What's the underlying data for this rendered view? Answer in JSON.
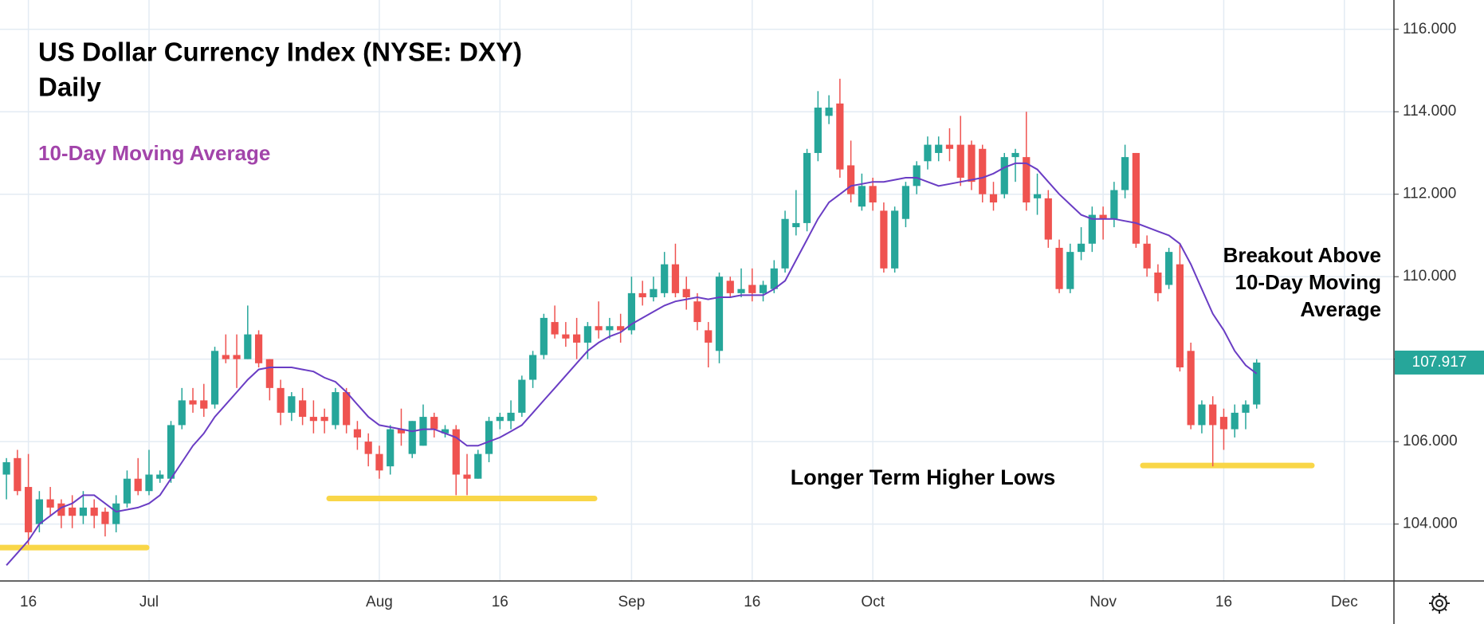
{
  "chart_data": {
    "type": "candlestick",
    "title": [
      "US Dollar Currency Index (NYSE: DXY)",
      "Daily"
    ],
    "categories": [
      null,
      null,
      "16",
      null,
      null,
      null,
      null,
      null,
      null,
      null,
      null,
      null,
      null,
      "Jul",
      null,
      null,
      null,
      null,
      null,
      null,
      null,
      null,
      null,
      null,
      null,
      null,
      null,
      null,
      null,
      null,
      null,
      null,
      null,
      null,
      "Aug",
      null,
      null,
      null,
      null,
      null,
      null,
      null,
      null,
      null,
      null,
      "16",
      null,
      null,
      null,
      null,
      null,
      null,
      null,
      null,
      null,
      null,
      null,
      "Sep",
      null,
      null,
      null,
      null,
      null,
      null,
      null,
      null,
      null,
      null,
      "16",
      null,
      null,
      null,
      null,
      null,
      null,
      null,
      null,
      null,
      null,
      "Oct",
      null,
      null,
      null,
      null,
      null,
      null,
      null,
      null,
      null,
      null,
      null,
      null,
      null,
      null,
      null,
      null,
      null,
      null,
      null,
      null,
      "Nov",
      null,
      null,
      null,
      null,
      null,
      null,
      null,
      null,
      null,
      null,
      "16",
      null,
      null,
      null,
      null,
      null,
      null,
      null,
      null,
      null,
      null,
      "Dec"
    ],
    "candles": {
      "up_color": "#26a69a",
      "down_color": "#ef5350",
      "open": [
        105.2,
        105.6,
        104.9,
        104.0,
        104.6,
        104.5,
        104.4,
        104.2,
        104.4,
        104.3,
        104.0,
        104.5,
        105.1,
        104.8,
        105.1,
        105.1,
        106.4,
        107.0,
        107.0,
        106.9,
        108.1,
        108.1,
        108.0,
        108.6,
        108.0,
        107.3,
        106.7,
        107.0,
        106.6,
        106.6,
        106.4,
        107.2,
        106.3,
        106.0,
        105.7,
        105.4,
        106.3,
        105.7,
        105.9,
        106.6,
        106.2,
        106.3,
        105.2,
        105.1,
        105.7,
        106.5,
        106.5,
        106.7,
        107.5,
        108.1,
        108.9,
        108.6,
        108.6,
        108.4,
        108.8,
        108.7,
        108.8,
        108.7,
        109.6,
        109.5,
        109.6,
        110.3,
        109.7,
        109.4,
        108.7,
        108.2,
        109.9,
        109.6,
        109.8,
        109.6,
        109.7,
        110.2,
        111.2,
        111.3,
        113.0,
        113.9,
        114.2,
        112.7,
        111.7,
        112.2,
        111.6,
        110.2,
        111.4,
        112.2,
        112.8,
        113.0,
        113.2,
        113.2,
        113.2,
        113.1,
        112.0,
        112.0,
        112.9,
        112.9,
        111.9,
        111.9,
        110.7,
        109.7,
        110.6,
        110.8,
        111.5,
        111.4,
        112.1,
        113.0,
        110.8,
        110.1,
        109.8,
        110.3,
        108.2,
        106.4,
        106.9,
        106.6,
        106.3,
        106.7,
        106.9,
        null,
        null,
        null,
        null,
        null,
        null,
        null,
        null
      ],
      "high": [
        105.6,
        105.8,
        105.7,
        104.8,
        104.9,
        104.6,
        104.7,
        104.8,
        104.6,
        104.4,
        104.7,
        105.3,
        105.6,
        105.8,
        105.3,
        106.5,
        107.3,
        107.3,
        107.4,
        108.3,
        108.6,
        108.6,
        109.3,
        108.7,
        108.0,
        107.5,
        107.2,
        107.3,
        107.0,
        106.8,
        107.3,
        107.3,
        106.5,
        106.2,
        105.9,
        106.4,
        106.8,
        106.5,
        106.9,
        106.7,
        106.4,
        106.4,
        105.7,
        105.8,
        106.6,
        106.7,
        107.0,
        107.6,
        108.2,
        109.1,
        109.3,
        108.9,
        109.0,
        108.9,
        109.4,
        109.0,
        109.1,
        110.0,
        109.9,
        110.0,
        110.6,
        110.8,
        110.0,
        109.6,
        108.9,
        110.1,
        110.0,
        110.2,
        110.2,
        109.9,
        110.4,
        111.6,
        112.1,
        113.1,
        114.5,
        114.4,
        114.8,
        113.3,
        112.5,
        112.4,
        111.8,
        111.7,
        112.3,
        112.8,
        113.4,
        113.4,
        113.6,
        113.9,
        113.3,
        113.2,
        112.3,
        113.0,
        113.1,
        114.0,
        112.5,
        112.1,
        110.9,
        110.8,
        111.2,
        111.7,
        111.7,
        112.3,
        113.2,
        113.0,
        111.0,
        110.3,
        110.7,
        110.8,
        108.4,
        107.0,
        107.1,
        106.8,
        106.9,
        107.0,
        108.0,
        null,
        null,
        null,
        null,
        null,
        null,
        null,
        null
      ],
      "low": [
        104.6,
        104.7,
        103.5,
        103.8,
        104.2,
        103.9,
        103.9,
        104.0,
        103.9,
        103.7,
        103.8,
        104.4,
        104.7,
        104.7,
        105.0,
        105.0,
        106.3,
        106.7,
        106.6,
        106.8,
        107.9,
        107.3,
        108.0,
        107.8,
        107.0,
        106.4,
        106.5,
        106.4,
        106.2,
        106.2,
        106.3,
        106.2,
        105.8,
        105.4,
        105.1,
        105.2,
        105.9,
        105.6,
        105.9,
        106.1,
        106.1,
        104.7,
        104.7,
        105.1,
        105.5,
        106.3,
        106.3,
        106.6,
        107.3,
        108.0,
        108.5,
        108.3,
        108.0,
        108.0,
        108.5,
        108.5,
        108.4,
        108.6,
        109.3,
        109.4,
        109.5,
        109.5,
        109.2,
        108.7,
        107.8,
        107.9,
        109.5,
        109.5,
        109.4,
        109.4,
        109.6,
        110.1,
        111.0,
        111.1,
        112.8,
        113.7,
        112.4,
        111.8,
        111.6,
        111.6,
        110.1,
        110.1,
        111.2,
        112.0,
        112.6,
        112.8,
        112.8,
        112.2,
        112.1,
        111.8,
        111.6,
        111.9,
        112.3,
        111.6,
        111.5,
        110.7,
        109.6,
        109.6,
        110.4,
        110.6,
        110.9,
        111.2,
        111.9,
        110.7,
        110.0,
        109.4,
        109.7,
        107.7,
        106.3,
        106.2,
        105.4,
        105.8,
        106.1,
        106.3,
        106.8,
        null,
        null,
        null,
        null,
        null,
        null,
        null,
        null
      ],
      "close": [
        105.5,
        104.8,
        103.8,
        104.6,
        104.4,
        104.2,
        104.2,
        104.4,
        104.2,
        104.0,
        104.5,
        105.1,
        104.8,
        105.2,
        105.2,
        106.4,
        107.0,
        106.9,
        106.8,
        108.2,
        108.0,
        108.0,
        108.6,
        107.9,
        107.3,
        106.7,
        107.1,
        106.6,
        106.5,
        106.5,
        107.2,
        106.4,
        106.1,
        105.7,
        105.3,
        106.3,
        106.2,
        106.5,
        106.6,
        106.3,
        106.3,
        105.2,
        105.1,
        105.7,
        106.5,
        106.6,
        106.7,
        107.5,
        108.1,
        109.0,
        108.6,
        108.5,
        108.4,
        108.8,
        108.7,
        108.8,
        108.7,
        109.6,
        109.5,
        109.7,
        110.3,
        109.6,
        109.5,
        108.9,
        108.4,
        110.0,
        109.6,
        109.7,
        109.6,
        109.8,
        110.2,
        111.4,
        111.3,
        113.0,
        114.1,
        114.1,
        112.6,
        112.0,
        112.2,
        111.8,
        110.2,
        111.6,
        112.2,
        112.7,
        113.2,
        113.2,
        113.1,
        112.4,
        112.3,
        112.0,
        111.8,
        112.9,
        113.0,
        111.8,
        112.0,
        110.9,
        109.7,
        110.6,
        110.8,
        111.5,
        111.4,
        112.1,
        112.9,
        110.8,
        110.2,
        109.6,
        110.6,
        107.8,
        106.4,
        106.9,
        106.4,
        106.3,
        106.7,
        106.9,
        107.917,
        null,
        null,
        null,
        null,
        null,
        null,
        null,
        null
      ]
    },
    "moving_average": {
      "name": "10-Day Moving Average",
      "color": "#6a3dc4",
      "label_color": "#a244aa",
      "values": [
        103.0,
        103.3,
        103.6,
        104.0,
        104.2,
        104.4,
        104.5,
        104.7,
        104.7,
        104.5,
        104.3,
        104.35,
        104.4,
        104.5,
        104.7,
        105.1,
        105.5,
        105.9,
        106.2,
        106.6,
        106.9,
        107.2,
        107.5,
        107.75,
        107.8,
        107.8,
        107.8,
        107.75,
        107.7,
        107.55,
        107.45,
        107.2,
        106.9,
        106.6,
        106.4,
        106.35,
        106.3,
        106.25,
        106.3,
        106.3,
        106.2,
        106.1,
        105.9,
        105.9,
        106.0,
        106.1,
        106.25,
        106.4,
        106.7,
        107.0,
        107.3,
        107.6,
        107.9,
        108.2,
        108.4,
        108.55,
        108.65,
        108.85,
        109.0,
        109.15,
        109.3,
        109.4,
        109.45,
        109.5,
        109.45,
        109.5,
        109.5,
        109.55,
        109.55,
        109.55,
        109.7,
        109.9,
        110.4,
        110.9,
        111.4,
        111.8,
        112.0,
        112.2,
        112.25,
        112.3,
        112.3,
        112.35,
        112.4,
        112.4,
        112.3,
        112.2,
        112.25,
        112.3,
        112.35,
        112.4,
        112.5,
        112.65,
        112.75,
        112.75,
        112.6,
        112.3,
        112.0,
        111.75,
        111.5,
        111.4,
        111.4,
        111.4,
        111.35,
        111.3,
        111.2,
        111.1,
        111.0,
        110.8,
        110.3,
        109.7,
        109.1,
        108.7,
        108.2,
        107.85,
        107.65,
        null,
        null,
        null,
        null,
        null,
        null,
        null,
        null
      ]
    },
    "last_value_label": "107.917",
    "support_lines": {
      "color": "#f9d648",
      "levels": [
        103.43,
        104.62,
        105.42
      ]
    },
    "annotations": {
      "lows": "Longer Term Higher Lows",
      "breakout": [
        "Breakout Above",
        "10-Day Moving",
        "Average"
      ]
    },
    "ylim": [
      102.62,
      116.71
    ],
    "yticks": [
      {
        "value": 104,
        "label": "104.000"
      },
      {
        "value": 106,
        "label": "106.000"
      },
      {
        "value": 108,
        "label": "108.000"
      },
      {
        "value": 110,
        "label": "110.000"
      },
      {
        "value": 112,
        "label": "112.000"
      },
      {
        "value": 114,
        "label": "114.000"
      },
      {
        "value": 116,
        "label": "116.000"
      }
    ],
    "grid": true
  }
}
